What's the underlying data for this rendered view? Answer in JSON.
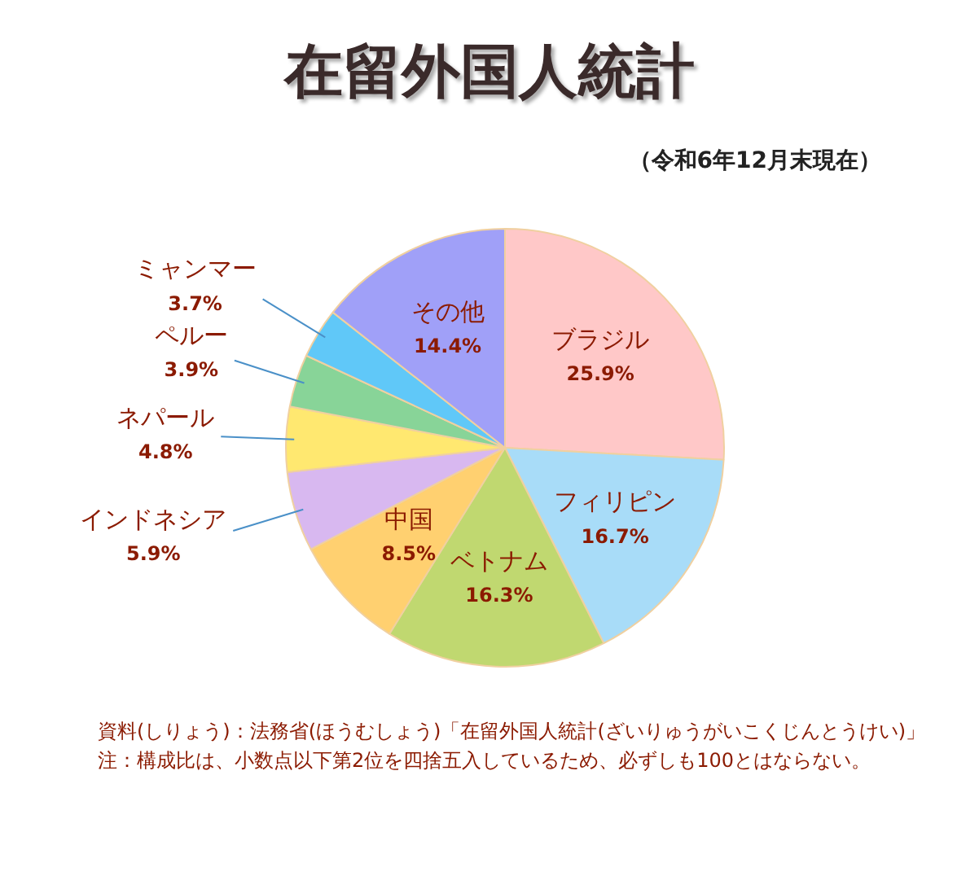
{
  "chart_data": {
    "type": "pie",
    "title": "在留外国人統計",
    "subtitle": "（令和6年12月末現在）",
    "categories": [
      "ブラジル",
      "フィリピン",
      "ベトナム",
      "中国",
      "インドネシア",
      "ネパール",
      "ペルー",
      "ミャンマー",
      "その他"
    ],
    "values": [
      25.9,
      16.7,
      16.3,
      8.5,
      5.9,
      4.8,
      3.9,
      3.7,
      14.4
    ],
    "colors": [
      "#ffc8c8",
      "#a8dcf8",
      "#c0d870",
      "#ffd070",
      "#d8b8f0",
      "#ffe870",
      "#88d498",
      "#60c8f8",
      "#a0a0f8"
    ],
    "value_labels": [
      "25.9%",
      "16.7%",
      "16.3%",
      "8.5%",
      "5.9%",
      "4.8%",
      "3.9%",
      "3.7%",
      "14.4%"
    ],
    "legend": false,
    "annotations": [
      "資料(しりょう)：法務省(ほうむしょう)「在留外国人統計(ざいりゅうがいこくじんとうけい)」",
      "注：構成比は、小数点以下第2位を四捨五入しているため、必ずしも100とはならない。"
    ]
  }
}
